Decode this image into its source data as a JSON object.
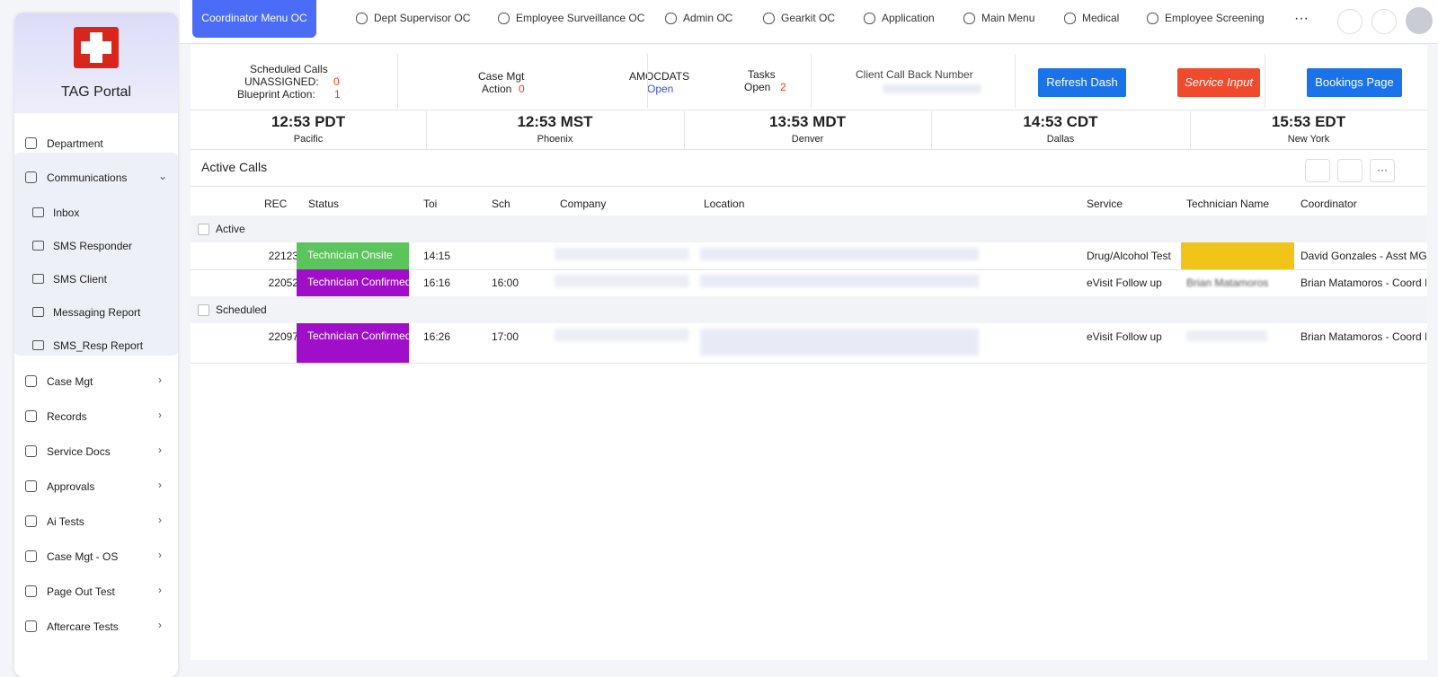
{
  "sidebar": {
    "title": "TAG Portal",
    "items": [
      {
        "label": "Department"
      },
      {
        "label": "Communications",
        "children": [
          "Inbox",
          "SMS Responder",
          "SMS Client",
          "Messaging Report",
          "SMS_Resp Report"
        ]
      },
      {
        "label": "Case Mgt"
      },
      {
        "label": "Records"
      },
      {
        "label": "Service Docs"
      },
      {
        "label": "Approvals"
      },
      {
        "label": "Ai Tests"
      },
      {
        "label": "Case Mgt - OS"
      },
      {
        "label": "Page Out Test"
      },
      {
        "label": "Aftercare Tests"
      }
    ]
  },
  "tabs": [
    "Coordinator Menu OC",
    "Dept Supervisor OC",
    "Employee Surveillance OC",
    "Admin OC",
    "Gearkit OC",
    "Application",
    "Main Menu",
    "Medical",
    "Employee Screening"
  ],
  "dashboard": {
    "scheduled": {
      "title": "Scheduled Calls",
      "unassigned_label": "UNASSIGNED:",
      "unassigned": "0",
      "blueprint_label": "Blueprint Action:",
      "blueprint": "1"
    },
    "case_mgt": {
      "title": "Case Mgt",
      "action_label": "Action",
      "action": "0"
    },
    "amocdats": {
      "title": "AMOCDATS",
      "status": "Open"
    },
    "tasks": {
      "title": "Tasks",
      "open_label": "Open",
      "open": "2"
    },
    "callback": {
      "title": "Client Call Back Number"
    },
    "buttons": [
      "Refresh Dash",
      "Service Input",
      "Bookings Page"
    ]
  },
  "clocks": [
    {
      "time": "12:53 PDT",
      "zone": "Pacific"
    },
    {
      "time": "12:53 MST",
      "zone": "Phoenix"
    },
    {
      "time": "13:53 MDT",
      "zone": "Denver"
    },
    {
      "time": "14:53 CDT",
      "zone": "Dallas"
    },
    {
      "time": "15:53 EDT",
      "zone": "New York"
    }
  ],
  "table": {
    "title": "Active Calls",
    "columns": [
      "REC",
      "Status",
      "Toi",
      "Sch",
      "Company",
      "Location",
      "Service",
      "Technician Name",
      "Coordinator"
    ],
    "groups": [
      {
        "name": "Active",
        "rows": [
          {
            "rec": "22123",
            "status": "Technician Onsite",
            "toi": "14:15",
            "sch": null,
            "service": "Drug/Alcohol Test",
            "technician": null,
            "coordinator": "David Gonzales - Asst MGR"
          },
          {
            "rec": "22052",
            "status": "Technician Confirmed",
            "toi": "16:16",
            "sch": "16:00",
            "service": "eVisit Follow up",
            "technician": "Brian Matamoros",
            "coordinator": "Brian Matamoros - Coord I"
          }
        ]
      },
      {
        "name": "Scheduled",
        "rows": [
          {
            "rec": "22097",
            "status": "Technician Confirmed",
            "toi": "16:26",
            "sch": "17:00",
            "service": "eVisit Follow up",
            "technician": null,
            "coordinator": "Brian Matamoros - Coord I"
          }
        ]
      }
    ]
  }
}
